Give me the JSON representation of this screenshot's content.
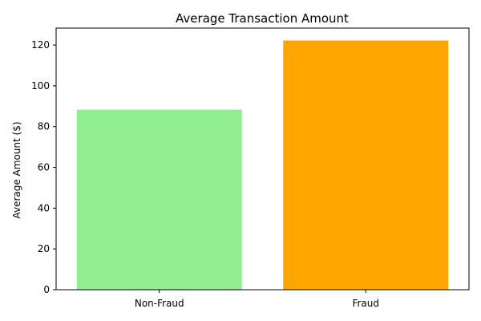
{
  "chart_data": {
    "type": "bar",
    "title": "Average Transaction Amount",
    "xlabel": "",
    "ylabel": "Average Amount ($)",
    "categories": [
      "Non-Fraud",
      "Fraud"
    ],
    "values": [
      88.3,
      122.2
    ],
    "colors": [
      "#90ee90",
      "#ffa500"
    ],
    "ylim": [
      0,
      128.3
    ],
    "yticks": [
      0,
      20,
      40,
      60,
      80,
      100,
      120
    ],
    "grid": false,
    "legend": "none"
  }
}
